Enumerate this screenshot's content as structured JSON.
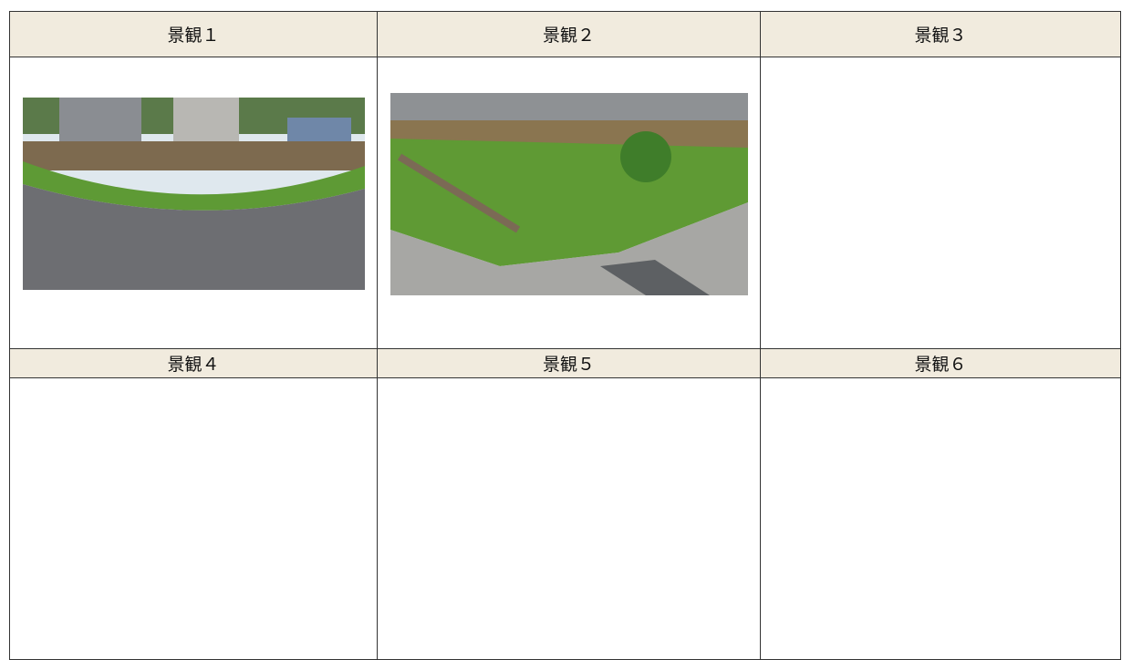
{
  "table": {
    "header_rows": [
      [
        "景観１",
        "景観２",
        "景観３"
      ],
      [
        "景観４",
        "景観５",
        "景観６"
      ]
    ]
  }
}
